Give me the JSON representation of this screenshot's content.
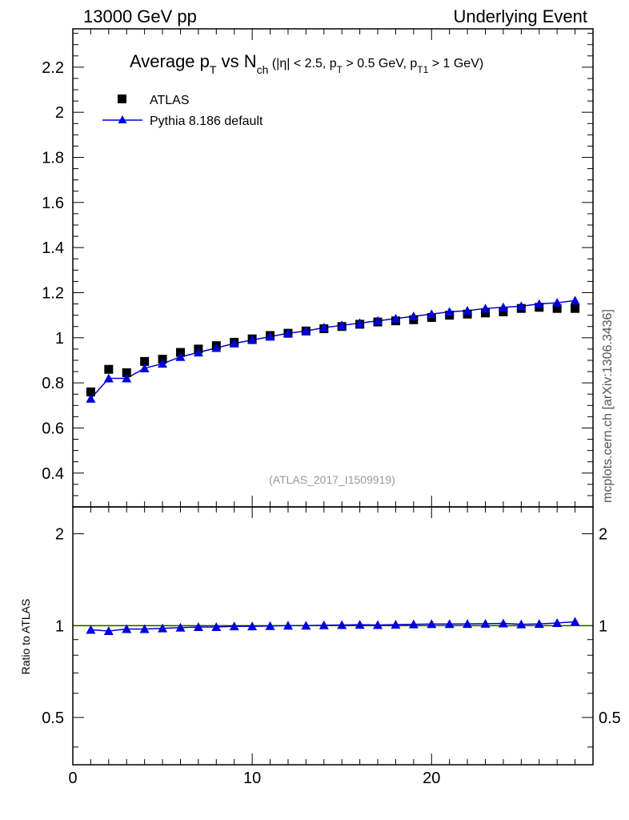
{
  "header": {
    "left": "13000 GeV pp",
    "right": "Underlying Event"
  },
  "side_label": "mcplots.cern.ch [arXiv:1306.3436]",
  "analysis_label": "(ATLAS_2017_I1509919)",
  "title_parts": {
    "a": "Average p",
    "a_sub": "T",
    "b": " vs N",
    "b_sub": "ch",
    "c": " (|η| < 2.5, p",
    "c_sub": "T",
    "d": " > 0.5 GeV, p",
    "d_sub": "T1",
    "e": " > 1 GeV)"
  },
  "legend": {
    "data_label": "ATLAS",
    "mc_label": "Pythia 8.186 default"
  },
  "colors": {
    "data": "#000000",
    "mc": "#0000dd",
    "ratio_band": "#c6ff4a"
  },
  "chart_data": [
    {
      "type": "scatter",
      "panel": "main",
      "xlim": [
        0,
        29
      ],
      "ylim": [
        0.25,
        2.37
      ],
      "yticks": [
        0.4,
        0.6,
        0.8,
        1,
        1.2,
        1.4,
        1.6,
        1.8,
        2,
        2.2
      ],
      "ytick_labels": [
        "0.4",
        "0.6",
        "0.8",
        "1",
        "1.2",
        "1.4",
        "1.6",
        "1.8",
        "2",
        "2.2"
      ],
      "x": [
        1,
        2,
        3,
        4,
        5,
        6,
        7,
        8,
        9,
        10,
        11,
        12,
        13,
        14,
        15,
        16,
        17,
        18,
        19,
        20,
        21,
        22,
        23,
        24,
        25,
        26,
        27,
        28
      ],
      "series": [
        {
          "name": "ATLAS",
          "values": [
            0.76,
            0.86,
            0.845,
            0.895,
            0.905,
            0.935,
            0.95,
            0.965,
            0.98,
            0.995,
            1.01,
            1.02,
            1.03,
            1.04,
            1.05,
            1.06,
            1.07,
            1.075,
            1.08,
            1.09,
            1.1,
            1.105,
            1.11,
            1.115,
            1.13,
            1.135,
            1.13,
            1.13
          ]
        },
        {
          "name": "Pythia 8.186 default",
          "values": [
            0.73,
            0.82,
            0.82,
            0.865,
            0.885,
            0.915,
            0.935,
            0.955,
            0.975,
            0.99,
            1.005,
            1.02,
            1.03,
            1.045,
            1.055,
            1.065,
            1.075,
            1.085,
            1.095,
            1.105,
            1.115,
            1.12,
            1.13,
            1.135,
            1.14,
            1.15,
            1.155,
            1.165
          ]
        }
      ]
    },
    {
      "type": "line",
      "panel": "ratio",
      "ylabel": "Ratio to ATLAS",
      "xlim": [
        0,
        29
      ],
      "ylim": [
        0.35,
        2.45
      ],
      "yticks": [
        0.5,
        1,
        2
      ],
      "ytick_labels": [
        "0.5",
        "1",
        "2"
      ],
      "xticks": [
        0,
        10,
        20
      ],
      "xtick_labels": [
        "0",
        "10",
        "20"
      ],
      "x": [
        1,
        2,
        3,
        4,
        5,
        6,
        7,
        8,
        9,
        10,
        11,
        12,
        13,
        14,
        15,
        16,
        17,
        18,
        19,
        20,
        21,
        22,
        23,
        24,
        25,
        26,
        27,
        28
      ],
      "series": [
        {
          "name": "Pythia 8.186 default",
          "values": [
            0.97,
            0.96,
            0.975,
            0.975,
            0.98,
            0.985,
            0.99,
            0.99,
            0.995,
            0.995,
            0.997,
            1.0,
            1.0,
            1.003,
            1.005,
            1.007,
            1.005,
            1.008,
            1.01,
            1.012,
            1.012,
            1.013,
            1.015,
            1.017,
            1.01,
            1.013,
            1.02,
            1.03
          ]
        }
      ]
    }
  ]
}
